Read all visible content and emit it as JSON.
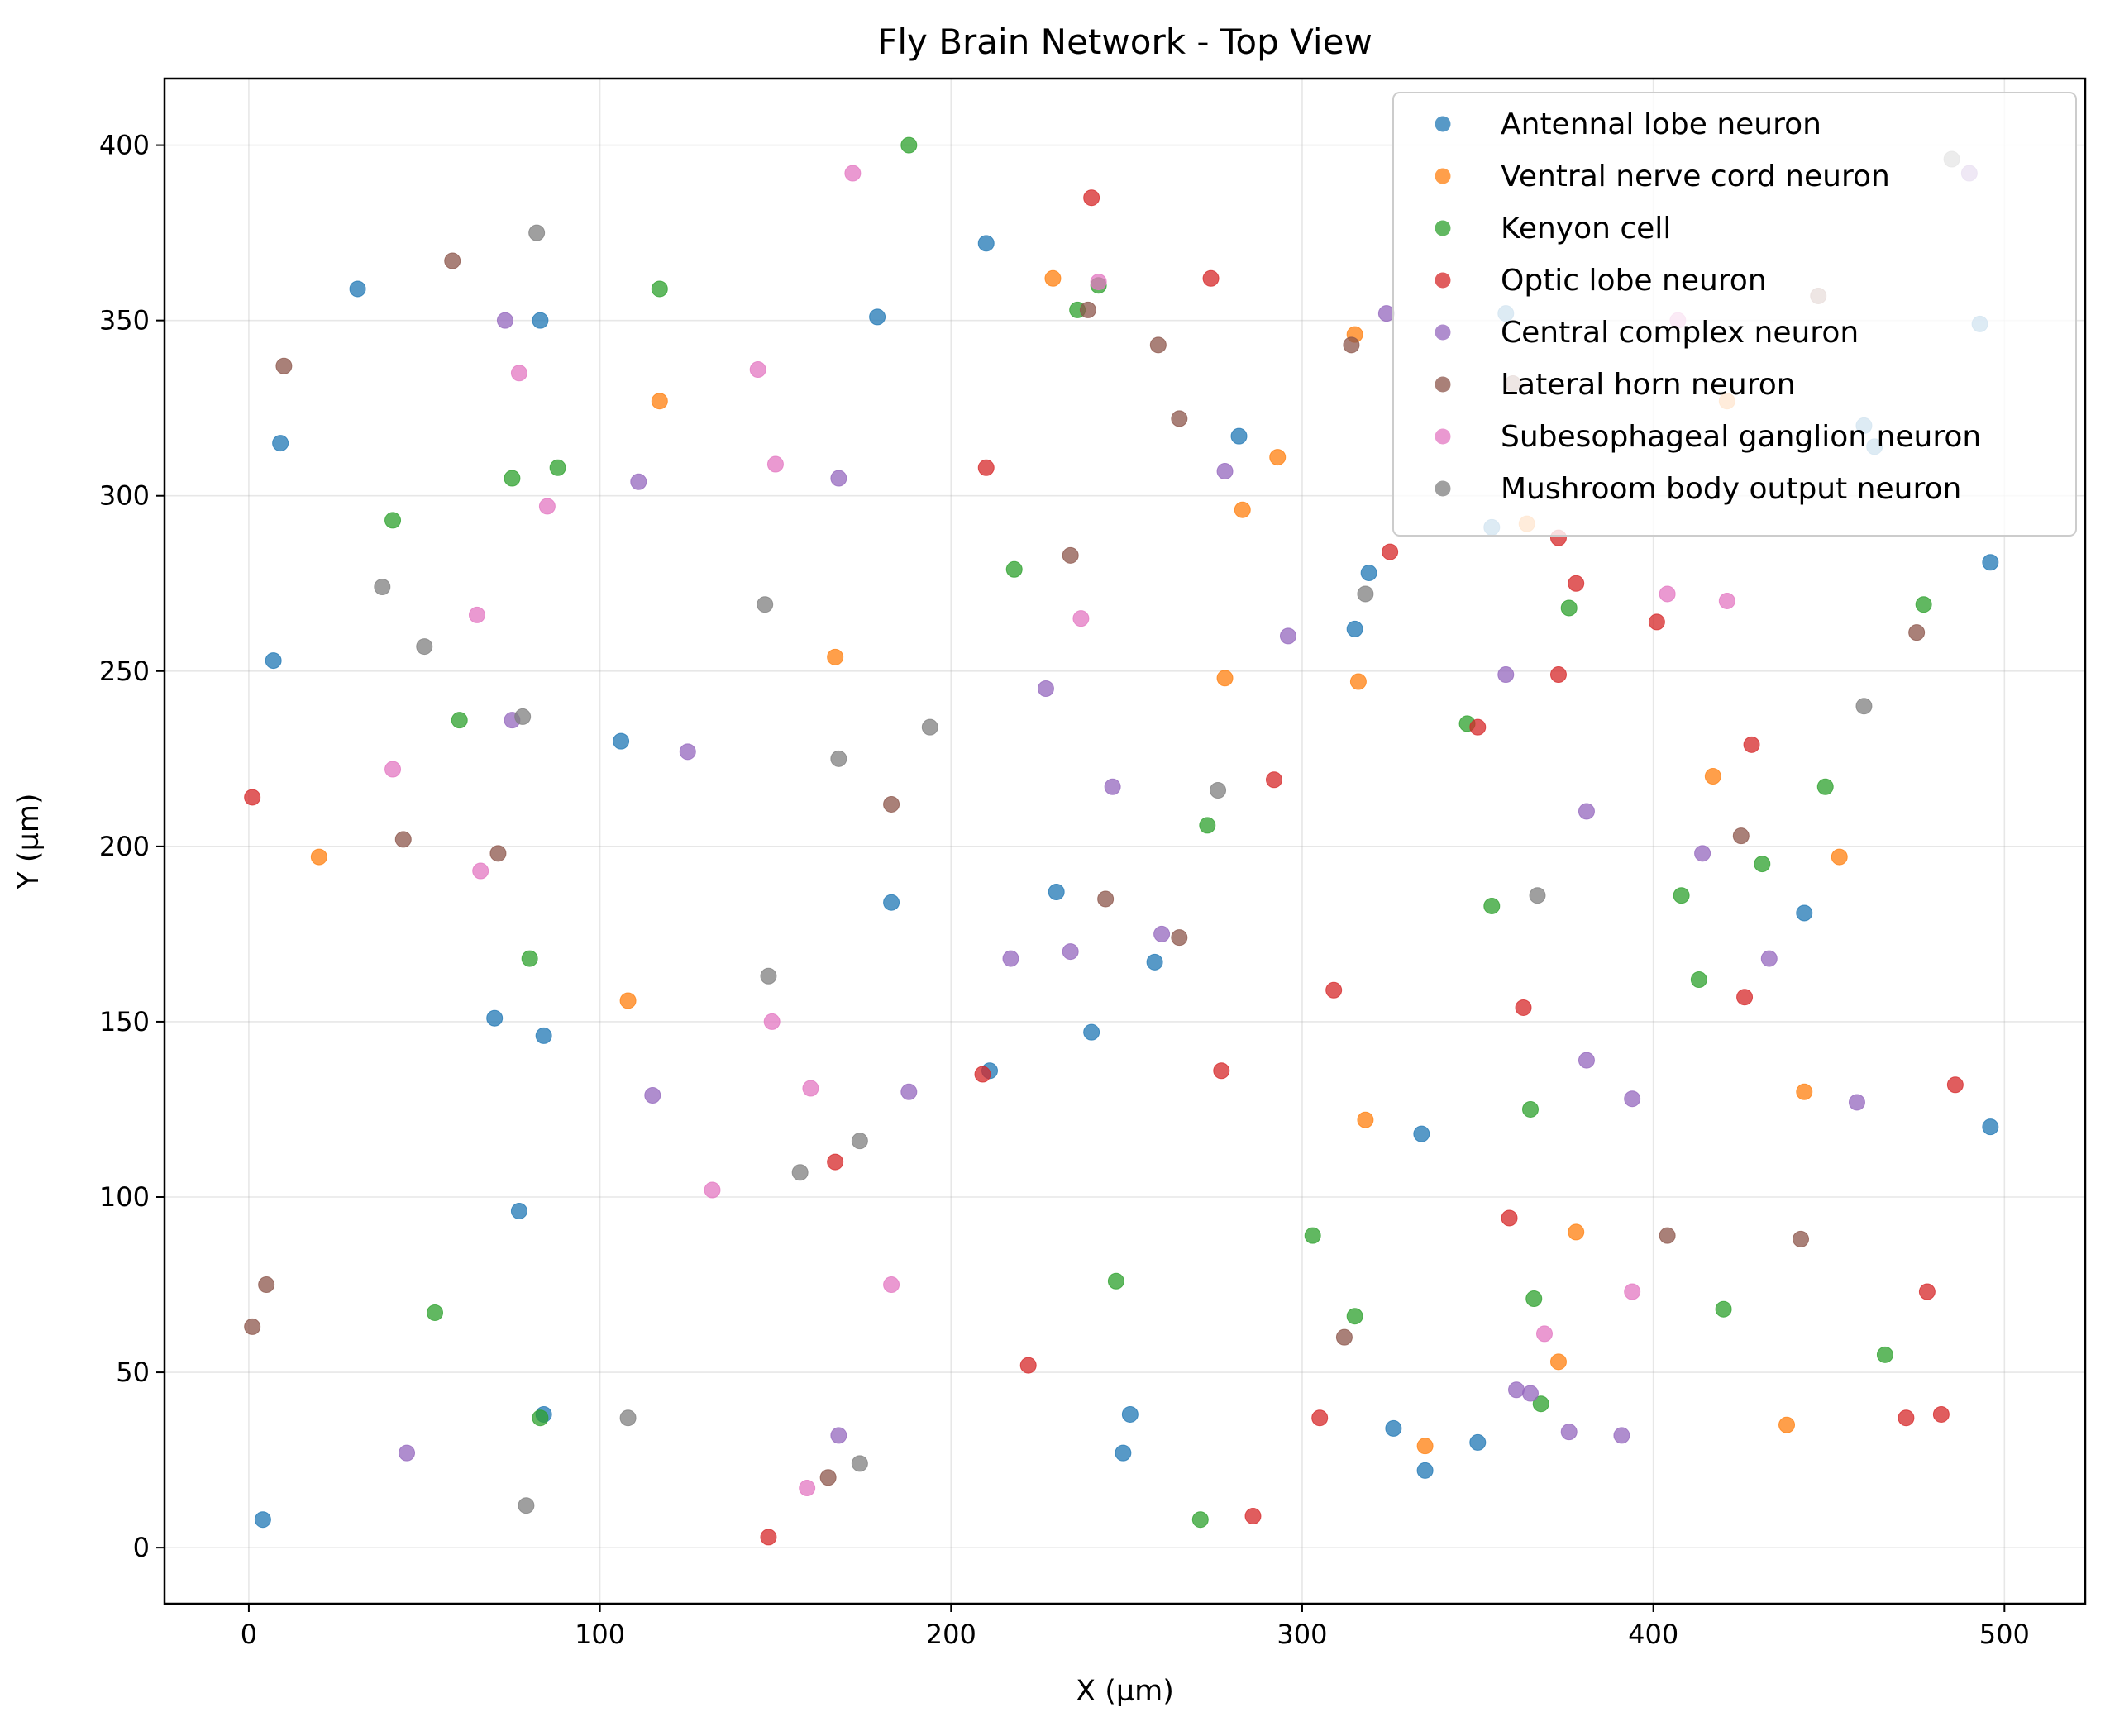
{
  "chart_data": {
    "type": "scatter",
    "title": "Fly Brain Network - Top View",
    "xlabel": "X (µm)",
    "ylabel": "Y (µm)",
    "xlim": [
      -24,
      523
    ],
    "ylim": [
      -16,
      419
    ],
    "xticks": [
      0,
      100,
      200,
      300,
      400,
      500
    ],
    "yticks": [
      0,
      50,
      100,
      150,
      200,
      250,
      300,
      350,
      400
    ],
    "grid": true,
    "legend_position": "top-right",
    "series": [
      {
        "name": "Antennal lobe neuron",
        "color": "#1f77b4",
        "points": [
          [
            31,
            359
          ],
          [
            83,
            350
          ],
          [
            9,
            315
          ],
          [
            7,
            253
          ],
          [
            106,
            230
          ],
          [
            179,
            351
          ],
          [
            210,
            372
          ],
          [
            183,
            184
          ],
          [
            230,
            187
          ],
          [
            240,
            147
          ],
          [
            211,
            136
          ],
          [
            70,
            151
          ],
          [
            84,
            146
          ],
          [
            77,
            96
          ],
          [
            84,
            38
          ],
          [
            4,
            8
          ],
          [
            251,
            38
          ],
          [
            249,
            27
          ],
          [
            258,
            167
          ],
          [
            282,
            317
          ],
          [
            319,
            278
          ],
          [
            315,
            262
          ],
          [
            354,
            291
          ],
          [
            358,
            352
          ],
          [
            326,
            34
          ],
          [
            335,
            22
          ],
          [
            350,
            30
          ],
          [
            334,
            118
          ],
          [
            443,
            181
          ],
          [
            460,
            320
          ],
          [
            493,
            349
          ],
          [
            496,
            281
          ],
          [
            496,
            120
          ],
          [
            463,
            314
          ]
        ]
      },
      {
        "name": "Ventral nerve cord neuron",
        "color": "#ff7f0e",
        "points": [
          [
            20,
            197
          ],
          [
            117,
            327
          ],
          [
            167,
            254
          ],
          [
            108,
            156
          ],
          [
            229,
            362
          ],
          [
            315,
            346
          ],
          [
            293,
            311
          ],
          [
            283,
            296
          ],
          [
            278,
            248
          ],
          [
            316,
            247
          ],
          [
            364,
            292
          ],
          [
            421,
            327
          ],
          [
            417,
            220
          ],
          [
            453,
            197
          ],
          [
            443,
            130
          ],
          [
            318,
            122
          ],
          [
            378,
            90
          ],
          [
            335,
            29
          ],
          [
            373,
            53
          ],
          [
            438,
            35
          ]
        ]
      },
      {
        "name": "Kenyon cell",
        "color": "#2ca02c",
        "points": [
          [
            188,
            400
          ],
          [
            117,
            359
          ],
          [
            75,
            305
          ],
          [
            88,
            308
          ],
          [
            41,
            293
          ],
          [
            60,
            236
          ],
          [
            80,
            168
          ],
          [
            53,
            67
          ],
          [
            83,
            37
          ],
          [
            218,
            279
          ],
          [
            236,
            353
          ],
          [
            242,
            360
          ],
          [
            273,
            206
          ],
          [
            247,
            76
          ],
          [
            271,
            8
          ],
          [
            303,
            89
          ],
          [
            315,
            66
          ],
          [
            347,
            235
          ],
          [
            354,
            183
          ],
          [
            365,
            125
          ],
          [
            366,
            71
          ],
          [
            368,
            41
          ],
          [
            376,
            268
          ],
          [
            408,
            186
          ],
          [
            413,
            162
          ],
          [
            431,
            195
          ],
          [
            449,
            217
          ],
          [
            477,
            269
          ],
          [
            420,
            68
          ],
          [
            466,
            55
          ]
        ]
      },
      {
        "name": "Optic lobe neuron",
        "color": "#d62728",
        "points": [
          [
            1,
            214
          ],
          [
            240,
            385
          ],
          [
            274,
            362
          ],
          [
            210,
            308
          ],
          [
            209,
            135
          ],
          [
            167,
            110
          ],
          [
            222,
            52
          ],
          [
            148,
            3
          ],
          [
            292,
            219
          ],
          [
            277,
            136
          ],
          [
            309,
            159
          ],
          [
            305,
            37
          ],
          [
            286,
            9
          ],
          [
            325,
            284
          ],
          [
            350,
            234
          ],
          [
            363,
            154
          ],
          [
            359,
            94
          ],
          [
            373,
            288
          ],
          [
            373,
            249
          ],
          [
            378,
            275
          ],
          [
            401,
            264
          ],
          [
            428,
            229
          ],
          [
            426,
            157
          ],
          [
            486,
            132
          ],
          [
            478,
            73
          ],
          [
            472,
            37
          ],
          [
            482,
            38
          ]
        ]
      },
      {
        "name": "Central complex neuron",
        "color": "#9467bd",
        "points": [
          [
            73,
            350
          ],
          [
            111,
            304
          ],
          [
            75,
            236
          ],
          [
            125,
            227
          ],
          [
            168,
            305
          ],
          [
            115,
            129
          ],
          [
            45,
            27
          ],
          [
            168,
            32
          ],
          [
            188,
            130
          ],
          [
            217,
            168
          ],
          [
            227,
            245
          ],
          [
            234,
            170
          ],
          [
            246,
            217
          ],
          [
            260,
            175
          ],
          [
            278,
            307
          ],
          [
            296,
            260
          ],
          [
            324,
            352
          ],
          [
            358,
            249
          ],
          [
            381,
            210
          ],
          [
            381,
            139
          ],
          [
            394,
            128
          ],
          [
            414,
            198
          ],
          [
            433,
            168
          ],
          [
            458,
            127
          ],
          [
            361,
            45
          ],
          [
            365,
            44
          ],
          [
            376,
            33
          ],
          [
            391,
            32
          ],
          [
            490,
            392
          ]
        ]
      },
      {
        "name": "Lateral horn neuron",
        "color": "#8c564b",
        "points": [
          [
            58,
            367
          ],
          [
            10,
            337
          ],
          [
            44,
            202
          ],
          [
            71,
            198
          ],
          [
            5,
            75
          ],
          [
            1,
            63
          ],
          [
            165,
            20
          ],
          [
            183,
            212
          ],
          [
            234,
            283
          ],
          [
            239,
            353
          ],
          [
            244,
            185
          ],
          [
            259,
            343
          ],
          [
            265,
            322
          ],
          [
            265,
            174
          ],
          [
            314,
            343
          ],
          [
            312,
            60
          ],
          [
            360,
            332
          ],
          [
            404,
            89
          ],
          [
            425,
            203
          ],
          [
            447,
            357
          ],
          [
            442,
            88
          ],
          [
            475,
            261
          ]
        ]
      },
      {
        "name": "Subesophageal ganglion neuron",
        "color": "#e377c2",
        "points": [
          [
            172,
            392
          ],
          [
            77,
            335
          ],
          [
            145,
            336
          ],
          [
            85,
            297
          ],
          [
            150,
            309
          ],
          [
            65,
            266
          ],
          [
            41,
            222
          ],
          [
            66,
            193
          ],
          [
            149,
            150
          ],
          [
            160,
            131
          ],
          [
            132,
            102
          ],
          [
            183,
            75
          ],
          [
            159,
            17
          ],
          [
            242,
            361
          ],
          [
            237,
            265
          ],
          [
            407,
            350
          ],
          [
            404,
            272
          ],
          [
            421,
            270
          ],
          [
            394,
            73
          ],
          [
            369,
            61
          ]
        ]
      },
      {
        "name": "Mushroom body output neuron",
        "color": "#7f7f7f",
        "points": [
          [
            82,
            375
          ],
          [
            38,
            274
          ],
          [
            50,
            257
          ],
          [
            78,
            237
          ],
          [
            147,
            269
          ],
          [
            168,
            225
          ],
          [
            194,
            234
          ],
          [
            148,
            163
          ],
          [
            174,
            116
          ],
          [
            157,
            107
          ],
          [
            108,
            37
          ],
          [
            174,
            24
          ],
          [
            79,
            12
          ],
          [
            276,
            216
          ],
          [
            318,
            272
          ],
          [
            367,
            186
          ],
          [
            460,
            240
          ],
          [
            485,
            396
          ]
        ]
      }
    ]
  }
}
